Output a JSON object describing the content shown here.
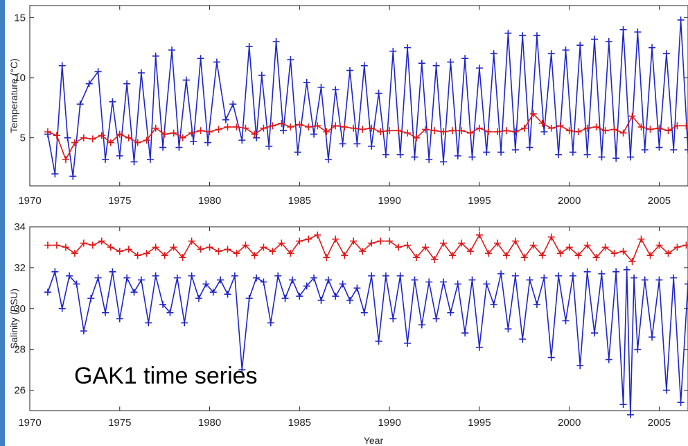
{
  "chart_data": [
    {
      "type": "line",
      "panel": "top",
      "ylabel": "Temperature (°C)",
      "ylim": [
        1,
        16
      ],
      "xlim": [
        1970,
        2006.6
      ],
      "xticks": [
        1970,
        1975,
        1980,
        1985,
        1990,
        1995,
        2000,
        2005
      ],
      "yticks": [
        5,
        10,
        15
      ],
      "grid": false,
      "series": [
        {
          "color": "#1f25c8",
          "x": [
            1971.0,
            1971.4,
            1971.8,
            1972.1,
            1972.4,
            1972.8,
            1973.3,
            1973.8,
            1974.2,
            1974.6,
            1975.0,
            1975.4,
            1975.8,
            1976.2,
            1976.7,
            1977.0,
            1977.4,
            1977.9,
            1978.3,
            1978.7,
            1979.1,
            1979.5,
            1979.9,
            1980.4,
            1980.9,
            1981.3,
            1981.8,
            1982.2,
            1982.6,
            1982.9,
            1983.3,
            1983.7,
            1984.1,
            1984.5,
            1984.9,
            1985.4,
            1985.8,
            1986.2,
            1986.6,
            1987.0,
            1987.4,
            1987.8,
            1988.2,
            1988.6,
            1989.0,
            1989.4,
            1989.8,
            1990.2,
            1990.6,
            1991.0,
            1991.4,
            1991.8,
            1992.2,
            1992.6,
            1993.0,
            1993.4,
            1993.8,
            1994.2,
            1994.6,
            1995.0,
            1995.4,
            1995.8,
            1996.2,
            1996.6,
            1997.0,
            1997.4,
            1997.8,
            1998.2,
            1998.6,
            1999.0,
            1999.4,
            1999.8,
            2000.2,
            2000.6,
            2001.0,
            2001.4,
            2001.8,
            2002.2,
            2002.6,
            2003.0,
            2003.4,
            2003.8,
            2004.2,
            2004.6,
            2005.0,
            2005.4,
            2005.8,
            2006.2,
            2006.6
          ],
          "y": [
            5.3,
            2.0,
            11.0,
            5.0,
            1.8,
            7.8,
            9.5,
            10.5,
            3.2,
            8.0,
            3.5,
            9.5,
            3.0,
            10.4,
            3.2,
            11.8,
            4.2,
            12.3,
            4.2,
            9.8,
            4.7,
            11.6,
            4.6,
            11.3,
            6.5,
            7.8,
            4.8,
            12.6,
            5.0,
            10.2,
            4.3,
            13.0,
            5.6,
            11.5,
            3.8,
            9.6,
            5.3,
            9.2,
            3.2,
            9.0,
            4.5,
            10.6,
            4.5,
            11.0,
            4.3,
            8.7,
            3.6,
            12.2,
            3.6,
            12.5,
            3.4,
            11.2,
            3.2,
            11.0,
            3.0,
            11.3,
            3.5,
            11.6,
            3.4,
            10.8,
            3.8,
            12.0,
            3.8,
            13.7,
            4.0,
            13.5,
            4.2,
            13.5,
            5.5,
            12.0,
            3.6,
            12.3,
            3.8,
            12.7,
            3.6,
            13.2,
            3.4,
            13.0,
            3.3,
            14.0,
            3.4,
            13.8,
            4.0,
            12.5,
            4.2,
            12.0,
            4.0,
            14.8,
            4.0
          ]
        },
        {
          "color": "#e01818",
          "x": [
            1971.0,
            1971.5,
            1972.0,
            1972.5,
            1973.0,
            1973.5,
            1974.0,
            1974.5,
            1975.0,
            1975.5,
            1976.0,
            1976.5,
            1977.0,
            1977.5,
            1978.0,
            1978.5,
            1979.0,
            1979.5,
            1980.0,
            1980.5,
            1981.0,
            1981.5,
            1982.0,
            1982.5,
            1983.0,
            1983.5,
            1984.0,
            1984.5,
            1985.0,
            1985.5,
            1986.0,
            1986.5,
            1987.0,
            1987.5,
            1988.0,
            1988.5,
            1989.0,
            1989.5,
            1990.0,
            1990.5,
            1991.0,
            1991.5,
            1992.0,
            1992.5,
            1993.0,
            1993.5,
            1994.0,
            1994.5,
            1995.0,
            1995.5,
            1996.0,
            1996.5,
            1997.0,
            1997.5,
            1998.0,
            1998.5,
            1999.0,
            1999.5,
            2000.0,
            2000.5,
            2001.0,
            2001.5,
            2002.0,
            2002.5,
            2003.0,
            2003.5,
            2004.0,
            2004.5,
            2005.0,
            2005.5,
            2006.0,
            2006.5
          ],
          "y": [
            5.5,
            5.2,
            3.2,
            4.6,
            5.0,
            4.9,
            5.2,
            4.6,
            5.3,
            5.0,
            4.6,
            4.8,
            5.8,
            5.3,
            5.4,
            5.0,
            5.4,
            5.6,
            5.5,
            5.7,
            5.9,
            5.9,
            5.8,
            5.3,
            5.8,
            6.0,
            6.2,
            5.9,
            6.1,
            5.9,
            6.0,
            5.5,
            6.0,
            5.9,
            5.8,
            5.7,
            5.8,
            5.5,
            5.6,
            5.6,
            5.4,
            5.0,
            5.7,
            5.6,
            5.5,
            5.6,
            5.6,
            5.4,
            5.8,
            5.5,
            5.5,
            5.6,
            5.5,
            5.8,
            7.0,
            6.2,
            5.8,
            6.0,
            5.6,
            5.5,
            5.8,
            5.9,
            5.6,
            5.7,
            5.4,
            6.8,
            5.9,
            5.7,
            5.8,
            5.6,
            6.0,
            6.0
          ]
        }
      ]
    },
    {
      "type": "line",
      "panel": "bottom",
      "xlabel": "Year",
      "ylabel": "Salinity (PSU)",
      "ylim": [
        25,
        34
      ],
      "xlim": [
        1970,
        2006.6
      ],
      "xticks": [
        1970,
        1975,
        1980,
        1985,
        1990,
        1995,
        2000,
        2005
      ],
      "yticks": [
        26,
        28,
        30,
        32,
        34
      ],
      "grid": false,
      "annotation": "GAK1 time series",
      "series": [
        {
          "color": "#e01818",
          "x": [
            1971.0,
            1971.5,
            1972.0,
            1972.5,
            1973.0,
            1973.5,
            1974.0,
            1974.5,
            1975.0,
            1975.5,
            1976.0,
            1976.5,
            1977.0,
            1977.5,
            1978.0,
            1978.5,
            1979.0,
            1979.5,
            1980.0,
            1980.5,
            1981.0,
            1981.5,
            1982.0,
            1982.5,
            1983.0,
            1983.5,
            1984.0,
            1984.5,
            1985.0,
            1985.5,
            1986.0,
            1986.5,
            1987.0,
            1987.5,
            1988.0,
            1988.5,
            1989.0,
            1989.5,
            1990.0,
            1990.5,
            1991.0,
            1991.5,
            1992.0,
            1992.5,
            1993.0,
            1993.5,
            1994.0,
            1994.5,
            1995.0,
            1995.5,
            1996.0,
            1996.5,
            1997.0,
            1997.5,
            1998.0,
            1998.5,
            1999.0,
            1999.5,
            2000.0,
            2000.5,
            2001.0,
            2001.5,
            2002.0,
            2002.5,
            2003.0,
            2003.5,
            2004.0,
            2004.5,
            2005.0,
            2005.5,
            2006.0,
            2006.5
          ],
          "y": [
            33.1,
            33.1,
            33.0,
            32.7,
            33.2,
            33.1,
            33.3,
            33.0,
            32.8,
            32.9,
            32.6,
            32.7,
            33.0,
            32.6,
            33.0,
            32.5,
            33.3,
            32.9,
            33.0,
            32.8,
            32.9,
            32.7,
            33.1,
            32.6,
            33.0,
            32.8,
            33.2,
            32.7,
            33.3,
            33.4,
            33.6,
            32.5,
            33.4,
            32.6,
            33.3,
            32.8,
            33.2,
            33.3,
            33.3,
            33.0,
            33.1,
            32.5,
            33.0,
            32.4,
            33.2,
            32.6,
            33.2,
            32.8,
            33.6,
            32.7,
            33.2,
            32.6,
            33.3,
            32.5,
            33.1,
            32.6,
            33.5,
            32.7,
            33.0,
            32.6,
            33.1,
            32.5,
            33.0,
            32.7,
            32.8,
            32.3,
            33.4,
            32.6,
            33.1,
            32.7,
            33.0,
            33.1
          ]
        },
        {
          "color": "#1f25c8",
          "x": [
            1971.0,
            1971.4,
            1971.8,
            1972.2,
            1972.6,
            1973.0,
            1973.4,
            1973.8,
            1974.2,
            1974.6,
            1975.0,
            1975.4,
            1975.8,
            1976.2,
            1976.6,
            1977.0,
            1977.4,
            1977.8,
            1978.2,
            1978.6,
            1979.0,
            1979.4,
            1979.8,
            1980.2,
            1980.6,
            1981.0,
            1981.4,
            1981.8,
            1982.2,
            1982.6,
            1983.0,
            1983.4,
            1983.8,
            1984.2,
            1984.6,
            1985.0,
            1985.4,
            1985.8,
            1986.2,
            1986.6,
            1987.0,
            1987.4,
            1987.8,
            1988.2,
            1988.6,
            1989.0,
            1989.4,
            1989.8,
            1990.2,
            1990.6,
            1991.0,
            1991.4,
            1991.8,
            1992.2,
            1992.6,
            1993.0,
            1993.4,
            1993.8,
            1994.2,
            1994.6,
            1995.0,
            1995.4,
            1995.8,
            1996.2,
            1996.6,
            1997.0,
            1997.4,
            1997.8,
            1998.2,
            1998.6,
            1999.0,
            1999.4,
            1999.8,
            2000.2,
            2000.6,
            2001.0,
            2001.4,
            2001.8,
            2002.2,
            2002.6,
            2003.0,
            2003.2,
            2003.4,
            2003.6,
            2003.8,
            2004.2,
            2004.6,
            2005.0,
            2005.4,
            2005.8,
            2006.2,
            2006.6
          ],
          "y": [
            30.8,
            31.8,
            30.0,
            31.6,
            31.2,
            28.9,
            30.5,
            31.5,
            29.8,
            31.8,
            29.5,
            31.5,
            30.8,
            31.4,
            29.3,
            31.6,
            30.2,
            29.8,
            31.5,
            29.3,
            31.6,
            30.5,
            31.2,
            30.8,
            31.4,
            30.7,
            31.6,
            27.0,
            30.5,
            31.5,
            31.3,
            29.3,
            31.6,
            30.5,
            31.4,
            30.6,
            31.1,
            31.5,
            30.4,
            31.4,
            30.6,
            31.2,
            30.4,
            31.0,
            29.8,
            31.6,
            28.4,
            31.6,
            29.5,
            31.6,
            28.3,
            31.4,
            29.2,
            31.3,
            29.5,
            31.3,
            29.8,
            31.2,
            28.8,
            31.4,
            28.1,
            31.2,
            30.2,
            31.7,
            29.0,
            31.6,
            28.5,
            31.4,
            30.2,
            31.5,
            27.6,
            31.6,
            29.4,
            31.6,
            27.2,
            31.8,
            28.8,
            31.7,
            27.5,
            31.8,
            25.3,
            31.9,
            24.8,
            31.5,
            28.0,
            31.4,
            28.6,
            31.4,
            26.0,
            31.5,
            25.4,
            31.2
          ]
        }
      ]
    }
  ]
}
